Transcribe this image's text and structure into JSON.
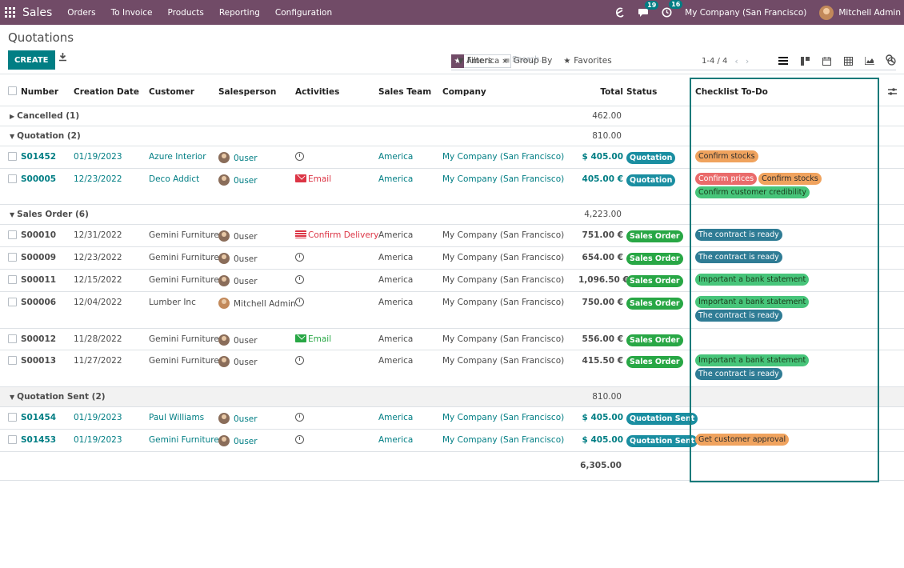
{
  "navbar": {
    "app_name": "Sales",
    "menu": [
      "Orders",
      "To Invoice",
      "Products",
      "Reporting",
      "Configuration"
    ],
    "messages_count": "19",
    "activities_count": "16",
    "company": "My Company (San Francisco)",
    "user": "Mitchell Admin",
    "icons": [
      "apps-icon",
      "bug-icon",
      "chat-icon",
      "clock-icon",
      "avatar"
    ]
  },
  "control_panel": {
    "title": "Quotations",
    "create_label": "CREATE",
    "facet_label": "America",
    "facet_remove": "×",
    "search_placeholder": "Search...",
    "filters_label": "Filters",
    "groupby_label": "Group By",
    "favorites_label": "Favorites",
    "pager": "1-4 / 4"
  },
  "columns": {
    "number": "Number",
    "creation_date": "Creation Date",
    "customer": "Customer",
    "salesperson": "Salesperson",
    "activities": "Activities",
    "sales_team": "Sales Team",
    "company": "Company",
    "total": "Total",
    "status": "Status",
    "checklist": "Checklist To-Do"
  },
  "groups": [
    {
      "name": "Cancelled (1)",
      "total": "462.00",
      "open": false,
      "rows": []
    },
    {
      "name": "Quotation (2)",
      "total": "810.00",
      "open": true,
      "rows": [
        {
          "number": "S01452",
          "date": "01/19/2023",
          "customer": "Azure Interior",
          "salesperson": "0user",
          "activity": "",
          "activity_type": "clock",
          "team": "America",
          "company": "My Company (San Francisco)",
          "total": "$ 405.00",
          "status": "Quotation",
          "status_type": "quot",
          "tags": [
            {
              "label": "Confirm stocks",
              "color": "orange"
            }
          ],
          "linked": true
        },
        {
          "number": "S00005",
          "date": "12/23/2022",
          "customer": "Deco Addict",
          "salesperson": "0user",
          "activity": "Email",
          "activity_type": "mail-red",
          "team": "America",
          "company": "My Company (San Francisco)",
          "total": "405.00 €",
          "status": "Quotation",
          "status_type": "quot",
          "tags": [
            {
              "label": "Confirm prices",
              "color": "red"
            },
            {
              "label": "Confirm stocks",
              "color": "orange"
            },
            {
              "label": "Confirm customer credibility",
              "color": "green"
            }
          ],
          "linked": true
        }
      ]
    },
    {
      "name": "Sales Order (6)",
      "total": "4,223.00",
      "open": true,
      "rows": [
        {
          "number": "S00010",
          "date": "12/31/2022",
          "customer": "Gemini Furniture",
          "salesperson": "0user",
          "activity": "Confirm Delivery",
          "activity_type": "truck",
          "team": "America",
          "company": "My Company (San Francisco)",
          "total": "751.00 €",
          "status": "Sales Order",
          "status_type": "so",
          "tags": [
            {
              "label": "The contract is ready",
              "color": "teal"
            }
          ],
          "linked": false
        },
        {
          "number": "S00009",
          "date": "12/23/2022",
          "customer": "Gemini Furniture",
          "salesperson": "0user",
          "activity": "",
          "activity_type": "clock",
          "team": "America",
          "company": "My Company (San Francisco)",
          "total": "654.00 €",
          "status": "Sales Order",
          "status_type": "so",
          "tags": [
            {
              "label": "The contract is ready",
              "color": "teal"
            }
          ],
          "linked": false
        },
        {
          "number": "S00011",
          "date": "12/15/2022",
          "customer": "Gemini Furniture",
          "salesperson": "0user",
          "activity": "",
          "activity_type": "clock",
          "team": "America",
          "company": "My Company (San Francisco)",
          "total": "1,096.50 €",
          "status": "Sales Order",
          "status_type": "so",
          "tags": [
            {
              "label": "Important a bank statement",
              "color": "green"
            }
          ],
          "linked": false
        },
        {
          "number": "S00006",
          "date": "12/04/2022",
          "customer": "Lumber Inc",
          "salesperson": "Mitchell Admin",
          "activity": "",
          "activity_type": "clock",
          "team": "America",
          "company": "My Company (San Francisco)",
          "total": "750.00 €",
          "status": "Sales Order",
          "status_type": "so",
          "tags": [
            {
              "label": "Important a bank statement",
              "color": "green"
            },
            {
              "label": "The contract is ready",
              "color": "teal"
            }
          ],
          "linked": false
        },
        {
          "number": "S00012",
          "date": "11/28/2022",
          "customer": "Gemini Furniture",
          "salesperson": "0user",
          "activity": "Email",
          "activity_type": "mail-green",
          "team": "America",
          "company": "My Company (San Francisco)",
          "total": "556.00 €",
          "status": "Sales Order",
          "status_type": "so",
          "tags": [],
          "linked": false
        },
        {
          "number": "S00013",
          "date": "11/27/2022",
          "customer": "Gemini Furniture",
          "salesperson": "0user",
          "activity": "",
          "activity_type": "clock",
          "team": "America",
          "company": "My Company (San Francisco)",
          "total": "415.50 €",
          "status": "Sales Order",
          "status_type": "so",
          "tags": [
            {
              "label": "Important a bank statement",
              "color": "green"
            },
            {
              "label": "The contract is ready",
              "color": "teal"
            }
          ],
          "linked": false
        }
      ]
    },
    {
      "name": "Quotation Sent (2)",
      "total": "810.00",
      "open": true,
      "rows": [
        {
          "number": "S01454",
          "date": "01/19/2023",
          "customer": "Paul Williams",
          "salesperson": "0user",
          "activity": "",
          "activity_type": "clock",
          "team": "America",
          "company": "My Company (San Francisco)",
          "total": "$ 405.00",
          "status": "Quotation Sent",
          "status_type": "qs",
          "tags": [],
          "linked": true
        },
        {
          "number": "S01453",
          "date": "01/19/2023",
          "customer": "Gemini Furniture",
          "salesperson": "0user",
          "activity": "",
          "activity_type": "clock",
          "team": "America",
          "company": "My Company (San Francisco)",
          "total": "$ 405.00",
          "status": "Quotation Sent",
          "status_type": "qs",
          "tags": [
            {
              "label": "Get customer approval",
              "color": "orange"
            }
          ],
          "linked": true
        }
      ]
    }
  ],
  "grand_total": "6,305.00",
  "colors": {
    "navbar": "#714b67",
    "primary": "#017e84",
    "highlight": "#197a7a"
  }
}
